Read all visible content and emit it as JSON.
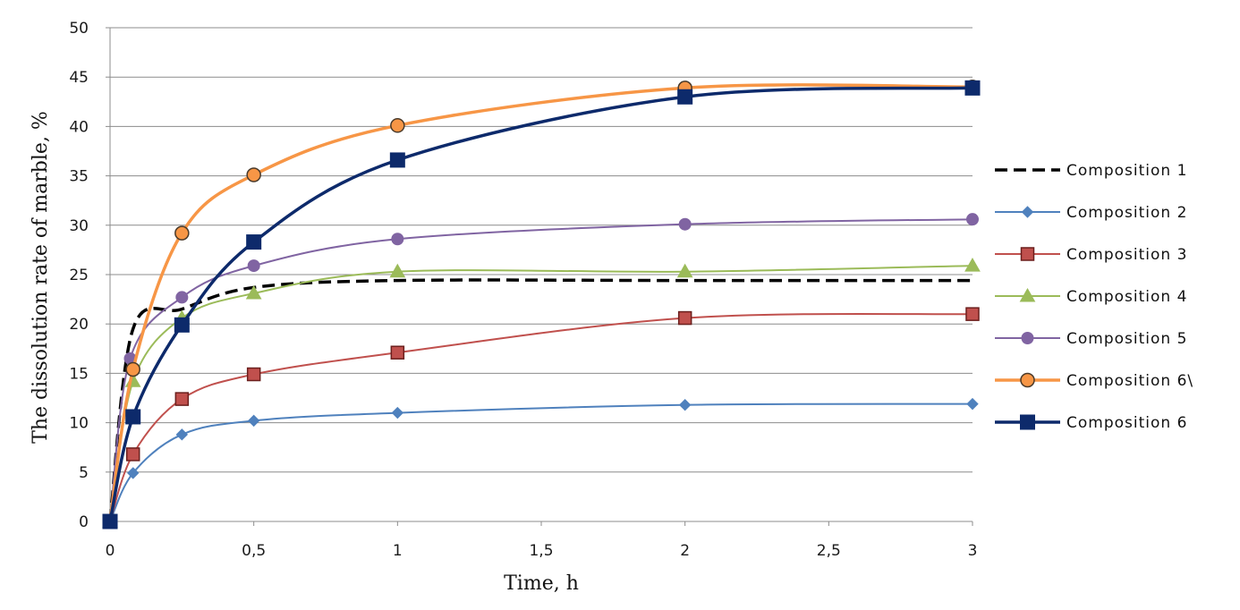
{
  "chart_data": {
    "type": "line",
    "xlabel": "Time,  h",
    "ylabel": "The dissolution rate of marble,  %",
    "xlim": [
      0,
      3
    ],
    "ylim": [
      0,
      50
    ],
    "x_ticks": [
      0,
      0.5,
      1,
      1.5,
      2,
      2.5,
      3
    ],
    "x_tick_labels": [
      "0",
      "0,5",
      "1",
      "1,5",
      "2",
      "2,5",
      "3"
    ],
    "y_ticks": [
      0,
      5,
      10,
      15,
      20,
      25,
      30,
      35,
      40,
      45,
      50
    ],
    "y_tick_labels": [
      "0",
      "5",
      "10",
      "15",
      "20",
      "25",
      "30",
      "35",
      "40",
      "45",
      "50"
    ],
    "grid": "horizontal",
    "legend_position": "right",
    "series": [
      {
        "name": "Composition 1",
        "color": "#000000",
        "marker": "none",
        "dash": true,
        "x": [
          0,
          0.08,
          0.25,
          0.5,
          1,
          2,
          3
        ],
        "y": [
          0,
          19.5,
          21.5,
          23.7,
          24.4,
          24.4,
          24.4
        ]
      },
      {
        "name": "Composition 2",
        "color": "#4f81bd",
        "marker": "diamond",
        "dash": false,
        "x": [
          0,
          0.08,
          0.25,
          0.5,
          1,
          2,
          3
        ],
        "y": [
          0,
          4.9,
          8.8,
          10.2,
          11.0,
          11.8,
          11.9
        ]
      },
      {
        "name": "Composition 3",
        "color": "#c0504d",
        "marker": "square",
        "dash": false,
        "x": [
          0,
          0.08,
          0.25,
          0.5,
          1,
          2,
          3
        ],
        "y": [
          0,
          6.8,
          12.4,
          14.9,
          17.1,
          20.6,
          21.0
        ]
      },
      {
        "name": "Composition 4",
        "color": "#9bbb59",
        "marker": "triangle",
        "dash": false,
        "x": [
          0,
          0.08,
          0.25,
          0.5,
          1,
          2,
          3
        ],
        "y": [
          0,
          14.2,
          20.6,
          23.1,
          25.3,
          25.3,
          25.9
        ]
      },
      {
        "name": "Composition 5",
        "color": "#8064a2",
        "marker": "circle",
        "dash": false,
        "x": [
          0,
          0.07,
          0.25,
          0.5,
          1,
          2,
          3
        ],
        "y": [
          0,
          16.5,
          22.7,
          25.9,
          28.6,
          30.1,
          30.6
        ]
      },
      {
        "name": "Composition 6\\",
        "color": "#f79646",
        "marker": "circle-open",
        "dash": false,
        "x": [
          0,
          0.08,
          0.25,
          0.5,
          1,
          2,
          3
        ],
        "y": [
          0,
          15.4,
          29.2,
          35.1,
          40.1,
          43.9,
          44.0
        ]
      },
      {
        "name": "Composition 6",
        "color": "#0d2a6b",
        "marker": "square-bold",
        "dash": false,
        "x": [
          0,
          0.08,
          0.25,
          0.5,
          1,
          2,
          3
        ],
        "y": [
          0,
          10.6,
          19.9,
          28.3,
          36.6,
          43.0,
          43.9
        ]
      }
    ]
  }
}
